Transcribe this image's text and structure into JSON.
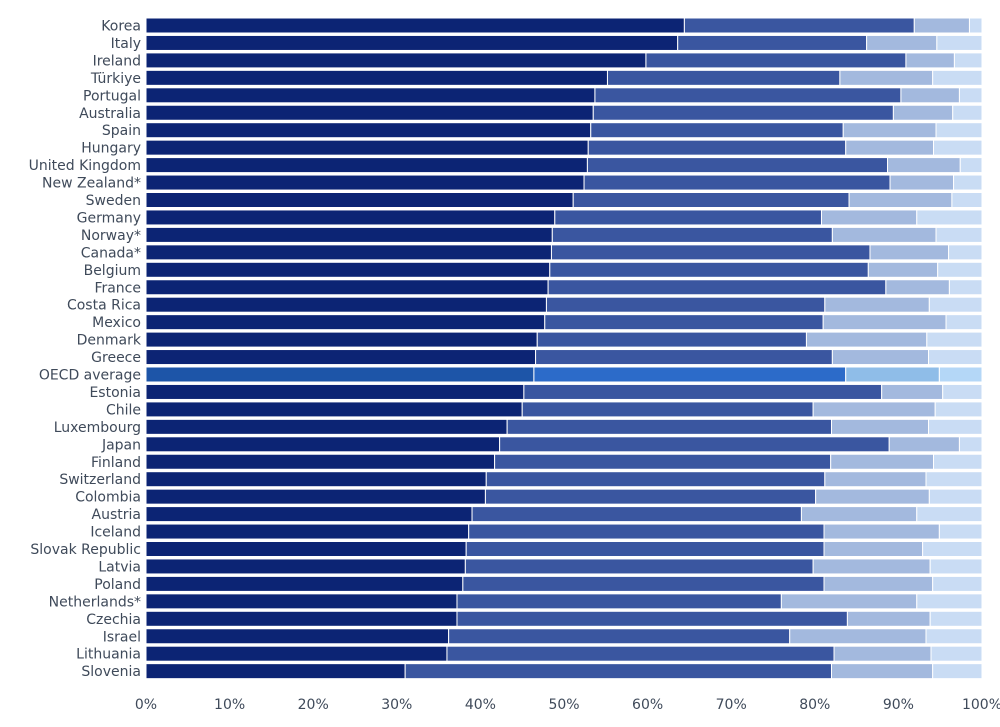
{
  "chart_data": {
    "type": "bar",
    "orientation": "horizontal",
    "stacked": true,
    "normalized": true,
    "categories": [
      "Korea",
      "Italy",
      "Ireland",
      "Türkiye",
      "Portugal",
      "Australia",
      "Spain",
      "Hungary",
      "United Kingdom",
      "New Zealand*",
      "Sweden",
      "Germany",
      "Norway*",
      "Canada*",
      "Belgium",
      "France",
      "Costa Rica",
      "Mexico",
      "Denmark",
      "Greece",
      "OECD average",
      "Estonia",
      "Chile",
      "Luxembourg",
      "Japan",
      "Finland",
      "Switzerland",
      "Colombia",
      "Austria",
      "Iceland",
      "Slovak Republic",
      "Latvia",
      "Poland",
      "Netherlands*",
      "Czechia",
      "Israel",
      "Lithuania",
      "Slovenia"
    ],
    "series": [
      {
        "values": [
          64.4,
          63.6,
          59.8,
          55.2,
          53.7,
          53.5,
          53.2,
          52.9,
          52.8,
          52.4,
          51.1,
          48.9,
          48.6,
          48.5,
          48.3,
          48.1,
          47.9,
          47.7,
          46.8,
          46.6,
          46.4,
          45.2,
          45.0,
          43.2,
          42.3,
          41.7,
          40.7,
          40.6,
          39.0,
          38.6,
          38.3,
          38.2,
          37.9,
          37.2,
          37.2,
          36.2,
          36.0,
          31.0
        ]
      },
      {
        "values": [
          27.5,
          22.6,
          31.1,
          27.8,
          36.6,
          35.9,
          30.2,
          30.8,
          35.9,
          36.6,
          33.0,
          31.9,
          33.5,
          38.1,
          38.1,
          40.4,
          33.3,
          33.3,
          32.2,
          35.5,
          37.3,
          42.8,
          34.8,
          38.8,
          46.6,
          40.2,
          40.5,
          39.5,
          39.4,
          42.5,
          42.8,
          41.6,
          43.2,
          38.8,
          46.7,
          40.8,
          46.3,
          51.0
        ]
      },
      {
        "values": [
          6.6,
          8.4,
          5.8,
          11.1,
          7.0,
          7.1,
          11.1,
          10.5,
          8.7,
          7.6,
          12.3,
          11.4,
          12.4,
          9.4,
          8.3,
          7.6,
          12.5,
          14.7,
          14.4,
          11.5,
          11.2,
          7.3,
          14.6,
          11.6,
          8.4,
          12.3,
          12.1,
          13.6,
          13.8,
          13.8,
          11.8,
          14.0,
          13.0,
          16.2,
          9.9,
          16.3,
          11.6,
          12.1
        ]
      },
      {
        "values": [
          1.5,
          5.4,
          3.3,
          5.9,
          2.7,
          3.5,
          5.5,
          5.8,
          2.6,
          3.4,
          3.6,
          7.8,
          5.5,
          4.0,
          5.3,
          3.9,
          6.3,
          4.3,
          6.6,
          6.4,
          5.1,
          4.7,
          5.6,
          6.4,
          2.7,
          5.8,
          6.7,
          6.3,
          7.8,
          5.1,
          7.1,
          6.2,
          5.9,
          7.8,
          6.2,
          6.7,
          6.1,
          5.9
        ]
      }
    ],
    "colors": [
      "#0c2474",
      "#3a56a0",
      "#a3b9de",
      "#c9dcf4"
    ],
    "highlight_category": "OECD average",
    "highlight_colors": [
      "#1d55a8",
      "#2c6bc9",
      "#8fbde8",
      "#b4d7f7"
    ],
    "xlim": [
      0,
      100
    ],
    "xticks": [
      "0%",
      "10%",
      "20%",
      "30%",
      "40%",
      "50%",
      "60%",
      "70%",
      "80%",
      "90%",
      "100%"
    ],
    "legend": "none",
    "grid": false
  }
}
